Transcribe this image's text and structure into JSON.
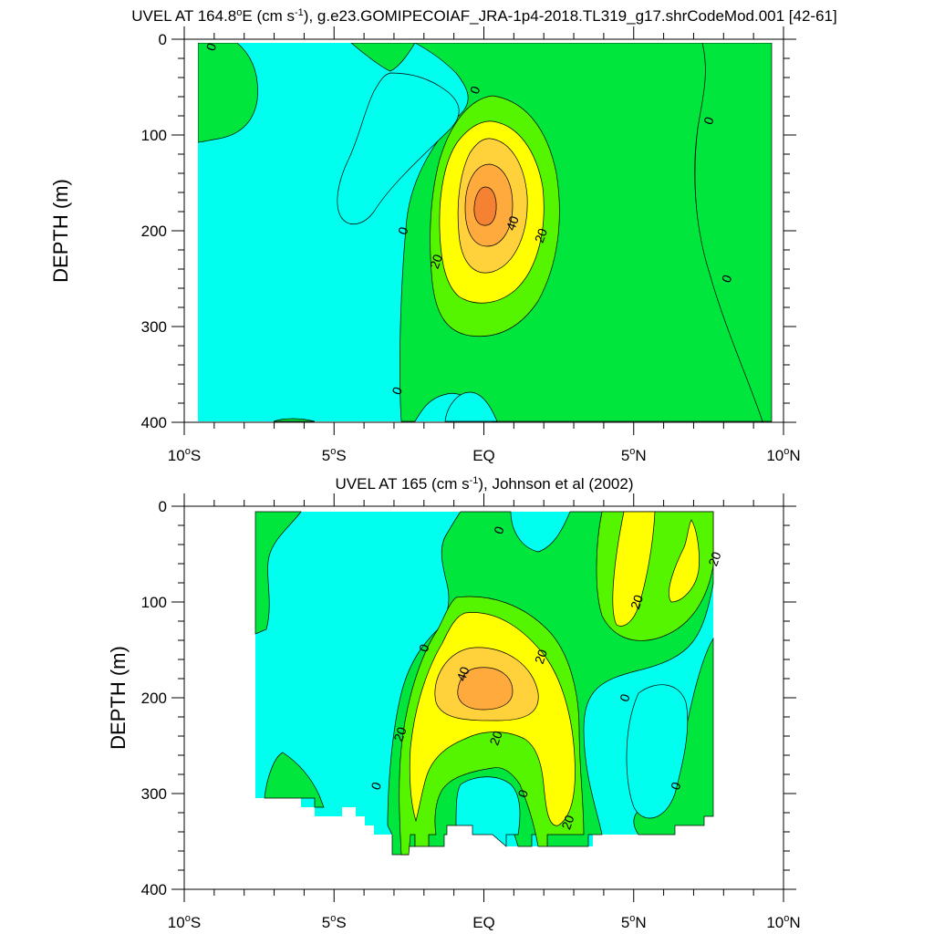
{
  "chart_data": [
    {
      "type": "contour",
      "title": "UVEL AT 164.8°E (cm s⁻¹), g.e23.GOMIPECOIAF_JRA-1p4-2018.TL319_g17.shrCodeMod.001 [42-61]",
      "title_parts": {
        "pre": "UVEL AT 164.8",
        "deg": "o",
        "mid": "E (cm s",
        "sup": "-1",
        "post": "), g.e23.GOMIPECOIAF_JRA-1p4-2018.TL319_g17.shrCodeMod.001 [42-61]"
      },
      "xlabel": "",
      "ylabel": "DEPTH (m)",
      "xlim": [
        -10,
        10
      ],
      "ylim": [
        400,
        0
      ],
      "y_reversed": true,
      "x_ticks": [
        {
          "value": -10,
          "num": "10",
          "deg": "o",
          "hemi": "S"
        },
        {
          "value": -5,
          "num": "5",
          "deg": "o",
          "hemi": "S"
        },
        {
          "value": 0,
          "num": "EQ",
          "deg": "",
          "hemi": ""
        },
        {
          "value": 5,
          "num": "5",
          "deg": "o",
          "hemi": "N"
        },
        {
          "value": 10,
          "num": "10",
          "deg": "o",
          "hemi": "N"
        }
      ],
      "y_ticks": [
        0,
        100,
        200,
        300,
        400
      ],
      "contour_interval": 10,
      "levels": [
        -10,
        0,
        10,
        20,
        30,
        40,
        50
      ],
      "level_colors": {
        "-10": "#00ffee",
        "0": "#00e63c",
        "10": "#55f500",
        "20": "#ffff00",
        "30": "#ffd23c",
        "40": "#ffaa3c",
        "50": "#f58232"
      },
      "data_extent": {
        "x": [
          -10,
          10
        ],
        "depth": [
          5,
          400
        ]
      },
      "contour_labels": [
        {
          "x": -9.1,
          "depth": 8,
          "text": "0"
        },
        {
          "x": -0.3,
          "depth": 53,
          "text": "0"
        },
        {
          "x": 7.5,
          "depth": 85,
          "text": "0"
        },
        {
          "x": -2.7,
          "depth": 200,
          "text": "0"
        },
        {
          "x": 0.95,
          "depth": 192,
          "text": "40"
        },
        {
          "x": 1.9,
          "depth": 205,
          "text": "20"
        },
        {
          "x": -1.6,
          "depth": 232,
          "text": "20"
        },
        {
          "x": 8.1,
          "depth": 250,
          "text": "0"
        },
        {
          "x": -2.9,
          "depth": 367,
          "text": "0"
        }
      ],
      "peak": {
        "x": 0.2,
        "depth": 175,
        "value": 50
      }
    },
    {
      "type": "contour",
      "title": "UVEL AT 165 (cm s⁻¹), Johnson et al (2002)",
      "title_parts": {
        "pre": "UVEL AT 165 (cm s",
        "deg": "",
        "mid": "",
        "sup": "-1",
        "post": "), Johnson et al (2002)"
      },
      "xlabel": "",
      "ylabel": "DEPTH (m)",
      "xlim": [
        -10,
        10
      ],
      "ylim": [
        400,
        0
      ],
      "y_reversed": true,
      "x_ticks": [
        {
          "value": -10,
          "num": "10",
          "deg": "o",
          "hemi": "S"
        },
        {
          "value": -5,
          "num": "5",
          "deg": "o",
          "hemi": "S"
        },
        {
          "value": 0,
          "num": "EQ",
          "deg": "",
          "hemi": ""
        },
        {
          "value": 5,
          "num": "5",
          "deg": "o",
          "hemi": "N"
        },
        {
          "value": 10,
          "num": "10",
          "deg": "o",
          "hemi": "N"
        }
      ],
      "y_ticks": [
        0,
        100,
        200,
        300,
        400
      ],
      "contour_interval": 10,
      "levels": [
        -10,
        0,
        10,
        20,
        30,
        40
      ],
      "level_colors": {
        "-10": "#00ffee",
        "0": "#00e63c",
        "10": "#55f500",
        "20": "#ffff00",
        "30": "#ffd23c",
        "40": "#ffaa3c"
      },
      "data_extent": {
        "x": [
          -8,
          8
        ],
        "depth": [
          5,
          360
        ]
      },
      "contour_labels": [
        {
          "x": 0.5,
          "depth": 25,
          "text": "0"
        },
        {
          "x": 7.7,
          "depth": 55,
          "text": "20"
        },
        {
          "x": 5.1,
          "depth": 100,
          "text": "20"
        },
        {
          "x": -2.0,
          "depth": 148,
          "text": "0"
        },
        {
          "x": 1.9,
          "depth": 157,
          "text": "20"
        },
        {
          "x": -0.7,
          "depth": 175,
          "text": "40"
        },
        {
          "x": 4.7,
          "depth": 200,
          "text": "0"
        },
        {
          "x": -2.8,
          "depth": 238,
          "text": "20"
        },
        {
          "x": 0.4,
          "depth": 242,
          "text": "20"
        },
        {
          "x": -3.6,
          "depth": 292,
          "text": "0"
        },
        {
          "x": 1.3,
          "depth": 300,
          "text": "0"
        },
        {
          "x": 6.4,
          "depth": 292,
          "text": "0"
        },
        {
          "x": 2.8,
          "depth": 330,
          "text": "20"
        }
      ],
      "peak": {
        "x": 0.1,
        "depth": 185,
        "value": 40
      }
    }
  ]
}
